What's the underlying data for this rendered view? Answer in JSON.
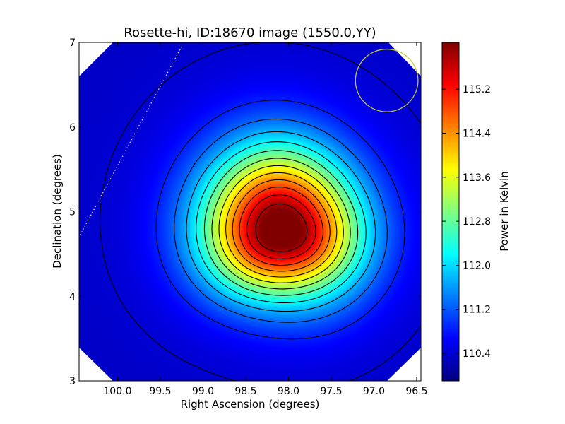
{
  "chart_data": {
    "type": "heatmap",
    "title": "Rosette-hi, ID:18670 image (1550.0,YY)",
    "xlabel": "Right Ascension (degrees)",
    "ylabel": "Declination (degrees)",
    "xlim": [
      100.45,
      96.45
    ],
    "ylim": [
      3,
      7
    ],
    "x_ticks": [
      "100.0",
      "99.5",
      "99.0",
      "98.5",
      "98.0",
      "97.5",
      "97.0",
      "96.5"
    ],
    "x_tick_values": [
      100.0,
      99.5,
      99.0,
      98.5,
      98.0,
      97.5,
      97.0,
      96.5
    ],
    "y_ticks": [
      "3",
      "4",
      "5",
      "6",
      "7"
    ],
    "y_tick_values": [
      3,
      4,
      5,
      6,
      7
    ],
    "colorbar": {
      "label": "Power in Kelvin",
      "range": [
        109.9,
        116.05
      ],
      "ticks": [
        "110.4",
        "111.2",
        "112.0",
        "112.8",
        "113.6",
        "114.4",
        "115.2"
      ],
      "tick_values": [
        110.4,
        111.2,
        112.0,
        112.8,
        113.6,
        114.4,
        115.2
      ],
      "colormap": "jet"
    },
    "source": {
      "ra": 98.1,
      "dec": 4.8,
      "peak": 116.0,
      "base": 110.3
    },
    "contour_levels": [
      110.4,
      110.85,
      111.3,
      111.75,
      112.2,
      112.65,
      113.1,
      113.55,
      114.0,
      114.45,
      114.9,
      115.35,
      115.8
    ],
    "overlays": {
      "circle": {
        "ra": 96.85,
        "dec": 6.55,
        "radius_deg": 0.37,
        "color": "#c8c83a"
      },
      "dotted_line": {
        "start": [
          99.25,
          6.95
        ],
        "end": [
          100.45,
          4.7
        ],
        "color": "#dddddd"
      }
    },
    "grid": false
  }
}
